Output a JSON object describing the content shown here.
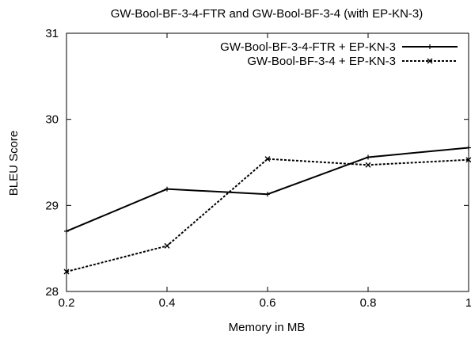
{
  "chart_data": {
    "type": "line",
    "title": "GW-Bool-BF-3-4-FTR and GW-Bool-BF-3-4 (with EP-KN-3)",
    "xlabel": "Memory in MB",
    "ylabel": "BLEU Score",
    "xlim": [
      0.2,
      1.0
    ],
    "ylim": [
      28,
      31
    ],
    "xticks": [
      0.2,
      0.4,
      0.6,
      0.8,
      1.0
    ],
    "xtick_labels": [
      "0.2",
      "0.4",
      "0.6",
      "0.8",
      "1"
    ],
    "yticks": [
      28,
      29,
      30,
      31
    ],
    "ytick_labels": [
      "28",
      "29",
      "30",
      "31"
    ],
    "grid": false,
    "legend_position": "top-right",
    "series": [
      {
        "name": "GW-Bool-BF-3-4-FTR + EP-KN-3",
        "line_style": "solid",
        "marker": "plus",
        "color": "#000000",
        "x": [
          0.2,
          0.4,
          0.6,
          0.8,
          1.0
        ],
        "y": [
          28.7,
          29.19,
          29.13,
          29.56,
          29.67
        ]
      },
      {
        "name": "GW-Bool-BF-3-4 + EP-KN-3",
        "line_style": "dashed",
        "marker": "cross",
        "color": "#000000",
        "x": [
          0.2,
          0.4,
          0.6,
          0.8,
          1.0
        ],
        "y": [
          28.23,
          28.53,
          29.54,
          29.47,
          29.53
        ]
      }
    ]
  }
}
